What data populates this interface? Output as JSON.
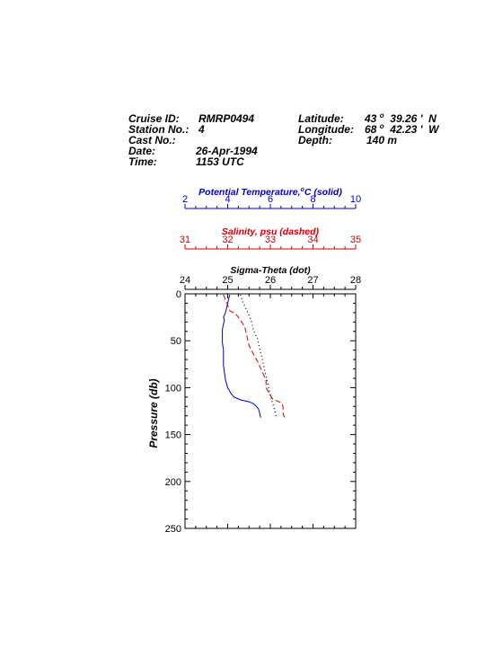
{
  "header": {
    "cruise_label": "Cruise ID:",
    "cruise_value": "RMRP0494",
    "station_label": "Station No.:",
    "station_value": "4",
    "cast_label": "Cast No.:",
    "cast_value": "",
    "date_label": "Date:",
    "date_value": "26-Apr-1994",
    "time_label": "Time:",
    "time_value": "1153 UTC",
    "latitude_label": "Latitude:",
    "latitude_deg": "43",
    "latitude_deg_symbol": "o",
    "latitude_min": "39.26",
    "latitude_hemi": "N",
    "longitude_label": "Longitude:",
    "longitude_deg": "68",
    "longitude_deg_symbol": "o",
    "longitude_min": "42.23",
    "longitude_hemi": "W",
    "depth_label": "Depth:",
    "depth_value": "140 m"
  },
  "chart_data": {
    "type": "line",
    "ylabel": "Pressure (db)",
    "ylim": [
      0,
      250
    ],
    "y_inverted": true,
    "y_ticks": [
      "0",
      "50",
      "100",
      "150",
      "200",
      "250"
    ],
    "axes": [
      {
        "key": "temp",
        "title": "Potential Temperature,",
        "title_sup": "o",
        "title_tail": "C (solid)",
        "color": "#0000c0",
        "range": [
          2,
          10
        ],
        "ticks": [
          "2",
          "4",
          "6",
          "8",
          "10"
        ]
      },
      {
        "key": "sal",
        "title": "Salinity, psu  (dashed)",
        "color": "#d00000",
        "range": [
          31,
          35
        ],
        "ticks": [
          "31",
          "32",
          "33",
          "34",
          "35"
        ]
      },
      {
        "key": "sig",
        "title": "Sigma-Theta (dot)",
        "color": "#000000",
        "range": [
          24,
          28
        ],
        "ticks": [
          "24",
          "25",
          "26",
          "27",
          "28"
        ]
      }
    ],
    "series": [
      {
        "axis": "temp",
        "style": "solid",
        "color": "#0000c0",
        "points": [
          [
            4.1,
            1
          ],
          [
            4.05,
            5
          ],
          [
            4.0,
            10
          ],
          [
            3.95,
            15
          ],
          [
            3.9,
            20
          ],
          [
            3.8,
            25
          ],
          [
            3.85,
            28
          ],
          [
            3.8,
            32
          ],
          [
            3.75,
            38
          ],
          [
            3.75,
            45
          ],
          [
            3.75,
            52
          ],
          [
            3.8,
            60
          ],
          [
            3.8,
            68
          ],
          [
            3.8,
            76
          ],
          [
            3.85,
            84
          ],
          [
            3.9,
            92
          ],
          [
            4.0,
            100
          ],
          [
            4.15,
            106
          ],
          [
            4.3,
            110
          ],
          [
            4.6,
            113
          ],
          [
            5.0,
            115
          ],
          [
            5.2,
            117
          ],
          [
            5.35,
            120
          ],
          [
            5.45,
            123
          ],
          [
            5.5,
            127
          ],
          [
            5.55,
            132
          ]
        ]
      },
      {
        "axis": "sal",
        "style": "dashed",
        "color": "#d00000",
        "points": [
          [
            31.9,
            1
          ],
          [
            31.95,
            6
          ],
          [
            32.0,
            12
          ],
          [
            32.05,
            18
          ],
          [
            32.2,
            22
          ],
          [
            32.3,
            28
          ],
          [
            32.4,
            35
          ],
          [
            32.45,
            45
          ],
          [
            32.5,
            55
          ],
          [
            32.6,
            64
          ],
          [
            32.7,
            72
          ],
          [
            32.8,
            82
          ],
          [
            32.9,
            92
          ],
          [
            32.9,
            100
          ],
          [
            33.0,
            108
          ],
          [
            33.05,
            112
          ],
          [
            33.25,
            116
          ],
          [
            33.3,
            120
          ],
          [
            33.3,
            125
          ],
          [
            33.3,
            128
          ],
          [
            33.35,
            133
          ]
        ]
      },
      {
        "axis": "sig",
        "style": "dotted",
        "color": "#000000",
        "points": [
          [
            25.3,
            1
          ],
          [
            25.35,
            8
          ],
          [
            25.45,
            18
          ],
          [
            25.55,
            28
          ],
          [
            25.6,
            38
          ],
          [
            25.7,
            48
          ],
          [
            25.75,
            58
          ],
          [
            25.8,
            68
          ],
          [
            25.85,
            78
          ],
          [
            25.9,
            88
          ],
          [
            25.95,
            98
          ],
          [
            26.0,
            108
          ],
          [
            26.05,
            116
          ],
          [
            26.1,
            124
          ],
          [
            26.15,
            133
          ]
        ]
      }
    ]
  }
}
